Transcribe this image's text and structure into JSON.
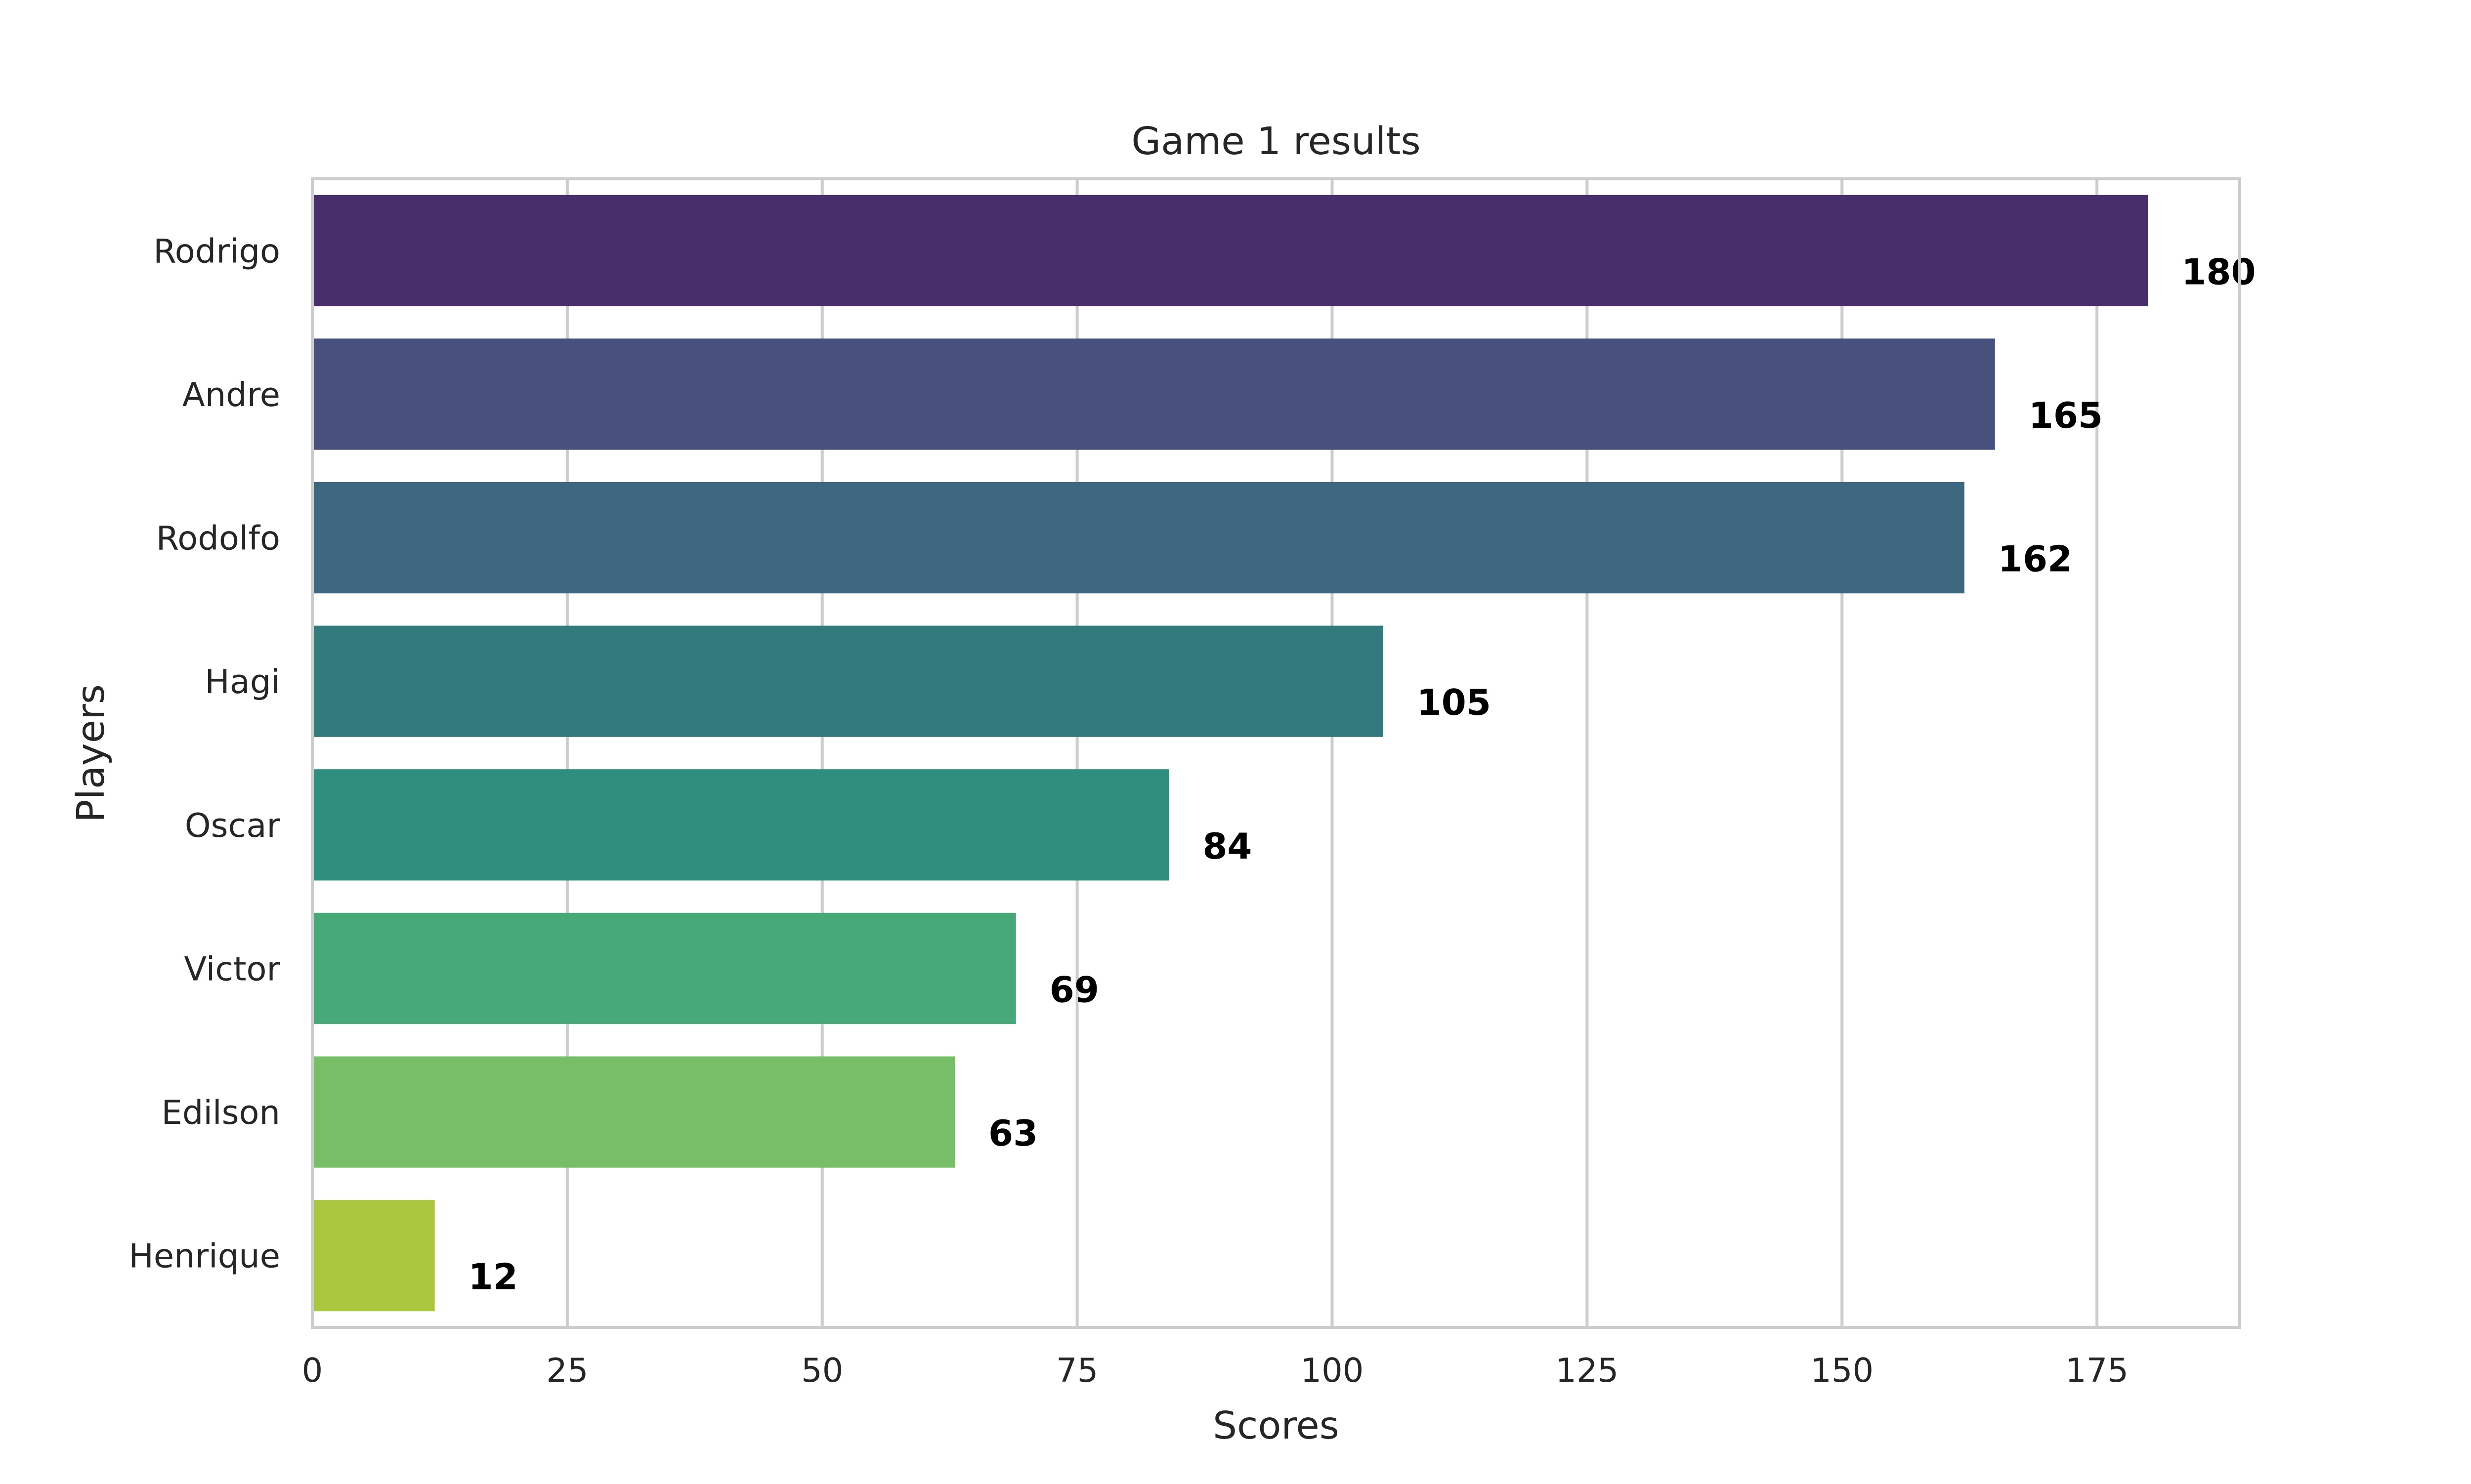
{
  "chart_data": {
    "type": "bar",
    "orientation": "horizontal",
    "title": "Game 1 results",
    "xlabel": "Scores",
    "ylabel": "Players",
    "categories": [
      "Rodrigo",
      "Andre",
      "Rodolfo",
      "Hagi",
      "Oscar",
      "Victor",
      "Edilson",
      "Henrique"
    ],
    "values": [
      180,
      165,
      162,
      105,
      84,
      69,
      63,
      12
    ],
    "data_labels": [
      "180",
      "165",
      "162",
      "105",
      "84",
      "69",
      "63",
      "12"
    ],
    "x_ticks": [
      0,
      25,
      50,
      75,
      100,
      125,
      150,
      175
    ],
    "x_tick_labels": [
      "0",
      "25",
      "50",
      "75",
      "100",
      "125",
      "150",
      "175"
    ],
    "xlim": [
      0,
      189
    ],
    "grid": "vertical",
    "legend": "none",
    "colors": [
      "#482f6b",
      "#48507d",
      "#3d6680",
      "#337a7f",
      "#2e8f7e",
      "#47a977",
      "#76bf66",
      "#abc63f"
    ]
  }
}
